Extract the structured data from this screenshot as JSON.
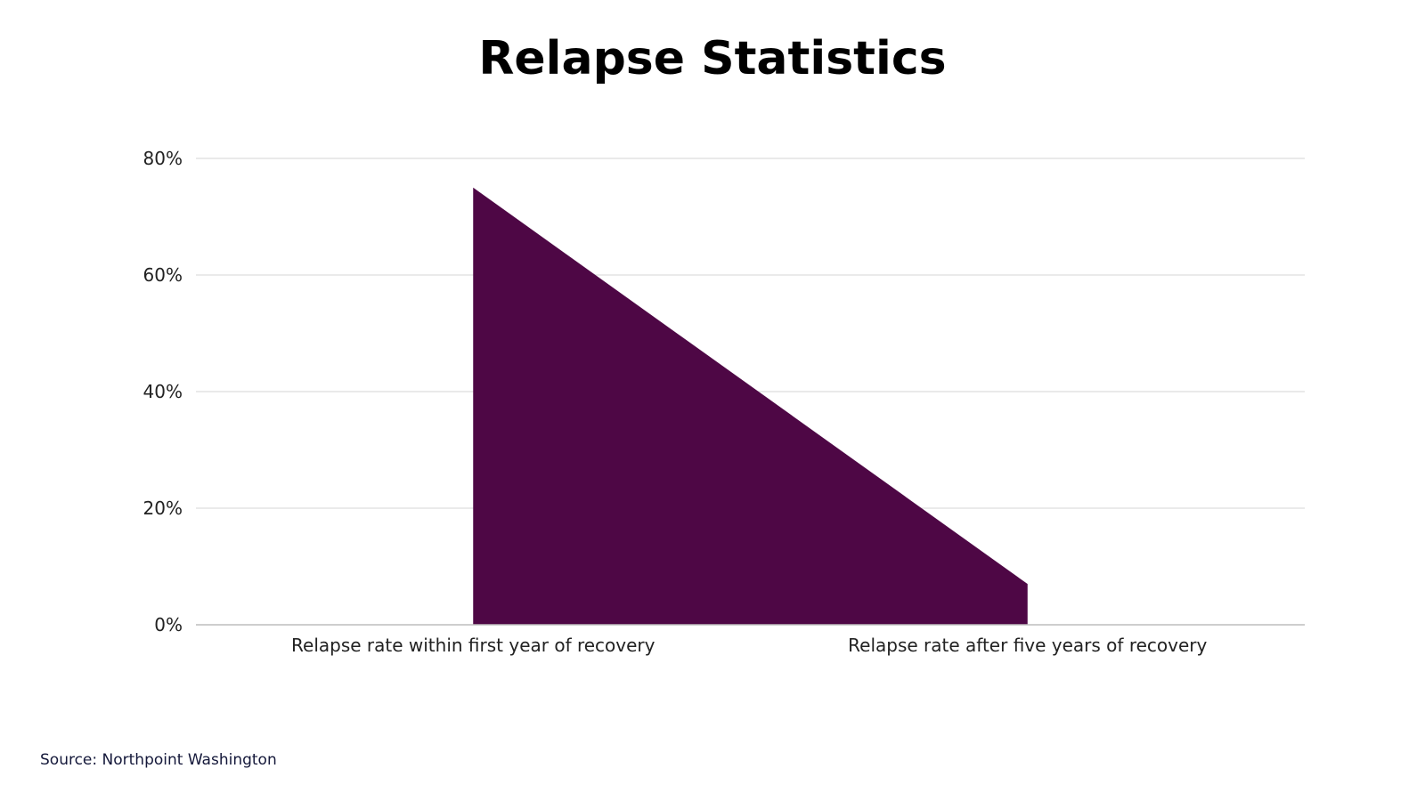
{
  "chart_data": {
    "type": "area",
    "title": "Relapse Statistics",
    "categories": [
      "Relapse rate within first year of recovery",
      "Relapse rate after five years of recovery"
    ],
    "series": [
      {
        "values": [
          75,
          7
        ]
      }
    ],
    "y_ticks": [
      "0%",
      "20%",
      "40%",
      "60%",
      "80%"
    ],
    "ylim": [
      0,
      80
    ],
    "y_unit": "%",
    "grid": true,
    "legend": "none",
    "colors": {
      "fill": "#4e0745",
      "grid": "#e3e3e3",
      "axis": "#bdbdbd",
      "tick_text": "#222222"
    }
  },
  "source_note": "Source: Northpoint Washington"
}
